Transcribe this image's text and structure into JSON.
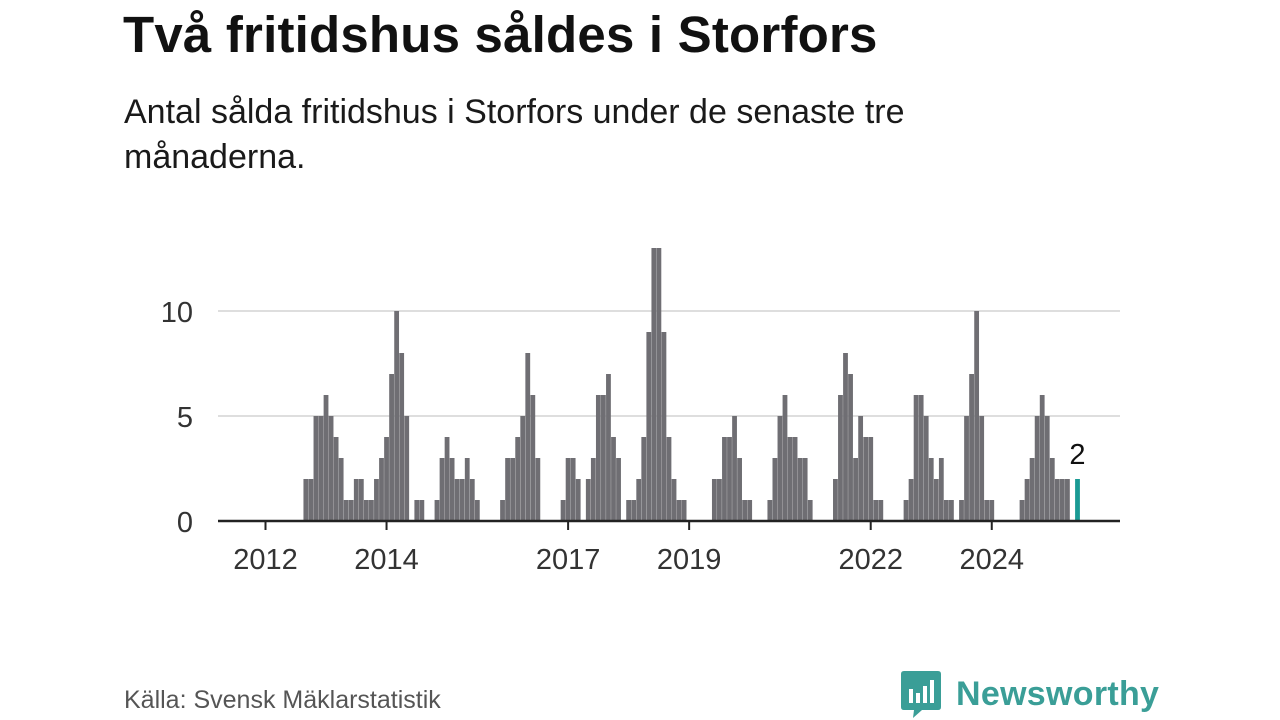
{
  "title": "Två fritidshus såldes i Storfors",
  "subtitle": "Antal sålda fritidshus i Storfors under de senaste tre månaderna.",
  "source": "Källa: Svensk Mäklarstatistik",
  "brand": "Newsworthy",
  "colors": {
    "bar": "#6f6e73",
    "highlight": "#1a9a94",
    "grid": "#dedede",
    "axis": "#222222",
    "brand": "#3a9e97"
  },
  "chart_data": {
    "type": "bar",
    "title": "Två fritidshus såldes i Storfors",
    "subtitle": "Antal sålda fritidshus i Storfors under de senaste tre månaderna.",
    "xlabel": "",
    "ylabel": "",
    "ylim": [
      0,
      13
    ],
    "yticks": [
      0,
      5,
      10
    ],
    "xticks": [
      "2012",
      "2014",
      "2017",
      "2019",
      "2022",
      "2024"
    ],
    "grid": true,
    "legend": "none",
    "annotation": "2",
    "series": [
      {
        "values": [
          null,
          null,
          null,
          null,
          null,
          null,
          null,
          null,
          2,
          2,
          5,
          5,
          6,
          5,
          4,
          3,
          1,
          1,
          2,
          2,
          1,
          1,
          2,
          3,
          4,
          7,
          10,
          8,
          5,
          null,
          1,
          1,
          null,
          null,
          1,
          3,
          4,
          3,
          2,
          2,
          3,
          2,
          1,
          null,
          null,
          null,
          null,
          1,
          3,
          3,
          4,
          5,
          8,
          6,
          3,
          null,
          null,
          null,
          null,
          1,
          3,
          3,
          2,
          null,
          2,
          3,
          6,
          6,
          7,
          4,
          3,
          null,
          1,
          1,
          2,
          4,
          9,
          13,
          13,
          9,
          4,
          2,
          1,
          1,
          null,
          null,
          null,
          null,
          null,
          2,
          2,
          4,
          4,
          5,
          3,
          1,
          1,
          null,
          null,
          null,
          1,
          3,
          5,
          6,
          4,
          4,
          3,
          3,
          1,
          null,
          null,
          null,
          null,
          2,
          6,
          8,
          7,
          3,
          5,
          4,
          4,
          1,
          1,
          null,
          null,
          null,
          null,
          1,
          2,
          6,
          6,
          5,
          3,
          2,
          3,
          1,
          1,
          null,
          1,
          5,
          7,
          10,
          5,
          1,
          1,
          null,
          null,
          null,
          null,
          null,
          1,
          2,
          3,
          5,
          6,
          5,
          3,
          2,
          2,
          2,
          null,
          2
        ]
      }
    ]
  }
}
